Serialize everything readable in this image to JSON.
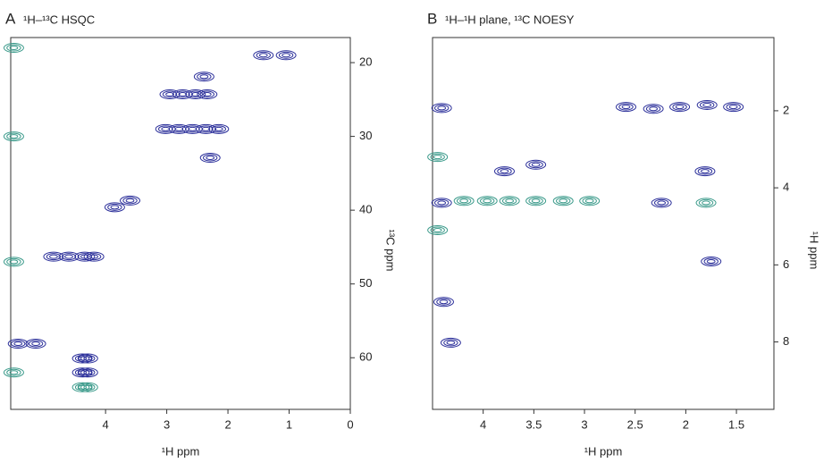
{
  "chart_data": [
    {
      "type": "contour",
      "panel": "A",
      "title": "¹H–¹³C HSQC",
      "x_label": "¹H ppm",
      "y_label": "¹³C ppm",
      "xlim": [
        5.55,
        0
      ],
      "ylim": [
        16.6,
        67
      ],
      "xticks": [
        4,
        3,
        2,
        1,
        0
      ],
      "yticks": [
        20,
        30,
        40,
        50,
        60
      ],
      "series": [
        {
          "color": "#2b2f9a",
          "x": [
            2.95,
            2.74,
            2.53,
            2.34,
            3.02,
            2.8,
            2.58,
            2.36,
            2.15,
            3.85,
            3.6,
            4.85,
            4.6,
            4.34,
            4.19,
            4.38,
            4.29,
            4.38,
            4.29,
            5.43,
            5.14,
            2.39,
            2.29,
            1.42,
            1.05
          ],
          "values": [
            24.3,
            24.3,
            24.3,
            24.3,
            29.0,
            29.0,
            29.0,
            29.0,
            29.0,
            39.6,
            38.7,
            46.3,
            46.3,
            46.3,
            46.3,
            60.1,
            60.1,
            62,
            62,
            58.1,
            58.1,
            21.9,
            32.9,
            19,
            19
          ]
        },
        {
          "color": "#3a9a8a",
          "x": [
            4.38,
            4.29,
            5.5,
            5.5,
            5.5,
            5.5
          ],
          "values": [
            64,
            64,
            18,
            30,
            47,
            62
          ]
        }
      ]
    },
    {
      "type": "contour",
      "panel": "B",
      "title": "¹H–¹H plane, ¹³C NOESY",
      "x_label": "¹H ppm",
      "y_label": "¹H ppm",
      "xlim": [
        4.5,
        1.13
      ],
      "ylim": [
        0.1,
        9.75
      ],
      "xticks": [
        4,
        3.5,
        3,
        2.5,
        2,
        1.5
      ],
      "yticks": [
        2,
        4,
        6,
        8
      ],
      "series": [
        {
          "color": "#2b2f9a",
          "x": [
            2.59,
            2.32,
            2.06,
            1.79,
            1.53,
            4.41,
            4.41,
            3.79,
            3.48,
            4.32,
            4.39,
            2.24,
            1.81,
            1.75
          ],
          "values": [
            1.9,
            1.95,
            1.9,
            1.85,
            1.9,
            1.93,
            4.39,
            3.57,
            3.4,
            8.02,
            6.96,
            4.39,
            3.57,
            5.91
          ]
        },
        {
          "color": "#3a9a8a",
          "x": [
            4.19,
            3.96,
            3.74,
            3.48,
            3.21,
            2.95,
            1.8,
            4.45,
            4.45
          ],
          "values": [
            4.34,
            4.34,
            4.34,
            4.34,
            4.34,
            4.34,
            4.39,
            3.2,
            5.1
          ]
        }
      ]
    }
  ]
}
